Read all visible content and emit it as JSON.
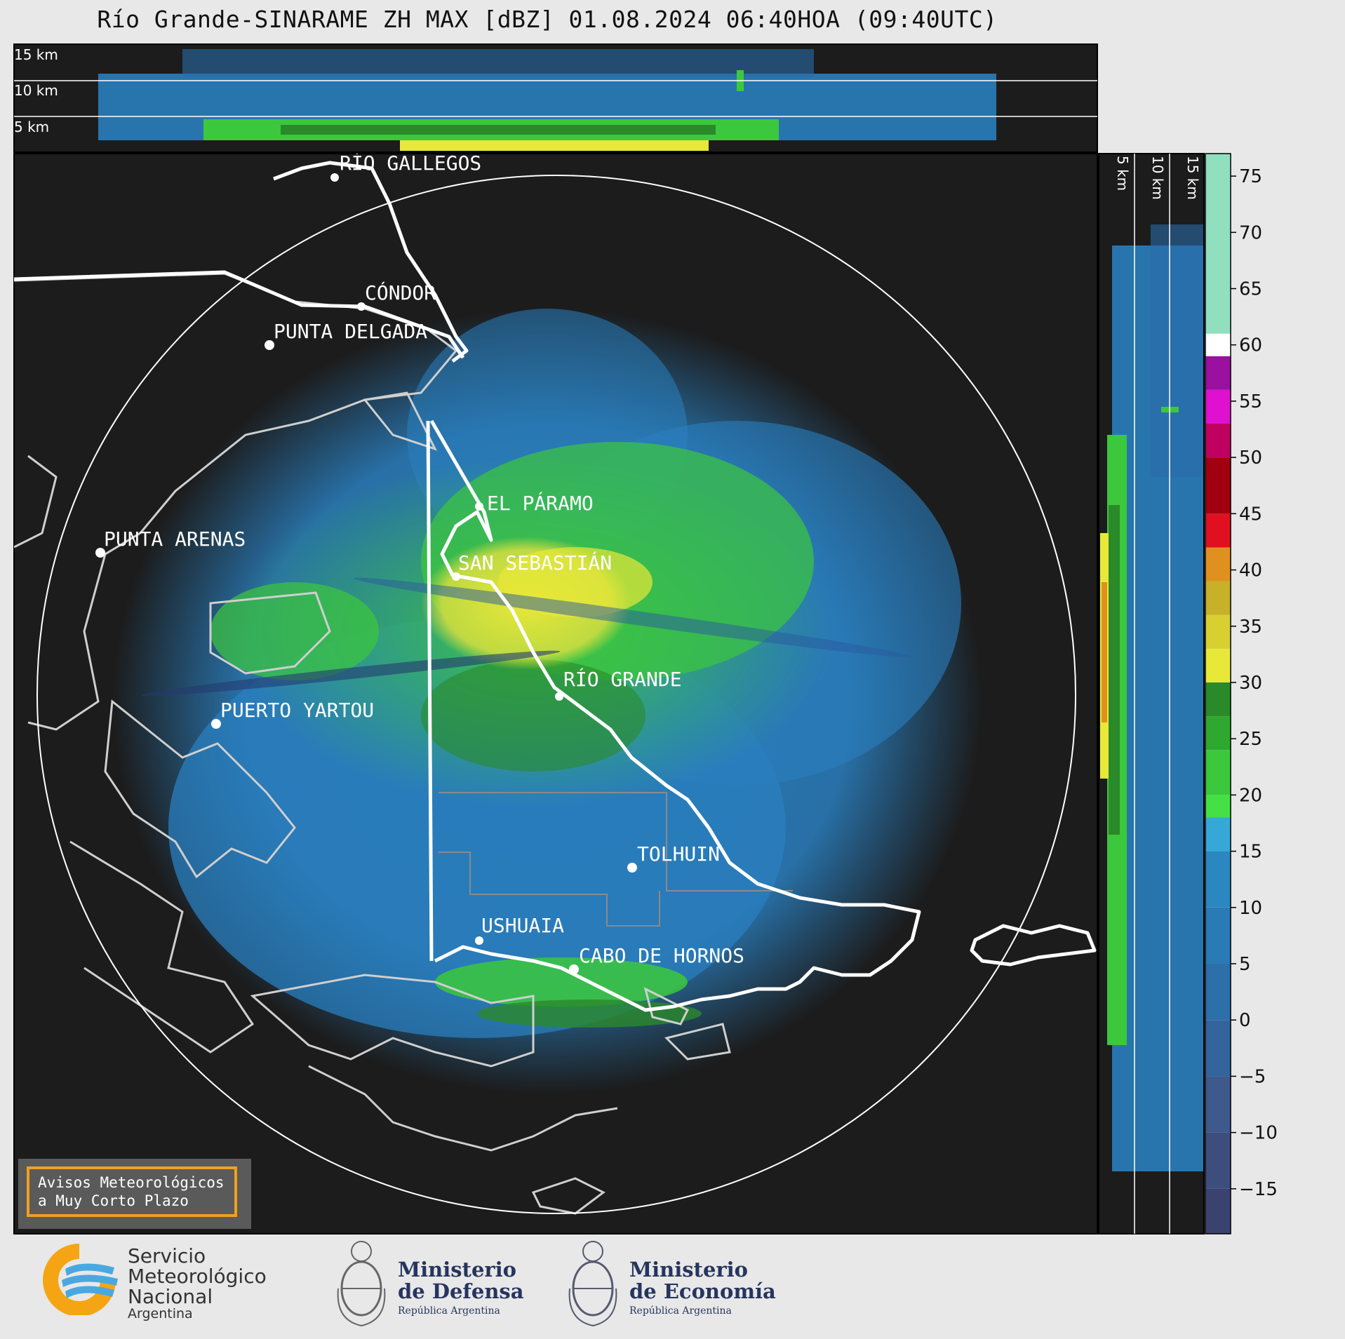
{
  "title": "Río Grande-SINARAME ZH MAX [dBZ] 01.08.2024 06:40HOA (09:40UTC)",
  "top_section": {
    "height_labels": [
      "15 km",
      "10 km",
      "5 km"
    ]
  },
  "side_section": {
    "height_labels": [
      "5 km",
      "10 km",
      "15 km"
    ]
  },
  "cities": [
    {
      "name": "RÍO GALLEGOS"
    },
    {
      "name": "CÓNDOR"
    },
    {
      "name": "PUNTA DELGADA"
    },
    {
      "name": "EL PÁRAMO"
    },
    {
      "name": "PUNTA ARENAS"
    },
    {
      "name": "SAN SEBASTIÁN"
    },
    {
      "name": "RÍO GRANDE"
    },
    {
      "name": "PUERTO YARTOU"
    },
    {
      "name": "TOLHUIN"
    },
    {
      "name": "USHUAIA"
    },
    {
      "name": "CABO DE HORNOS"
    }
  ],
  "colorbar": {
    "unit": "dBZ",
    "ticks": [
      "75",
      "70",
      "65",
      "60",
      "55",
      "50",
      "45",
      "40",
      "35",
      "30",
      "25",
      "20",
      "15",
      "10",
      "5",
      "0",
      "−5",
      "−10",
      "−15"
    ],
    "colors": {
      "low": "#3a4370",
      "blue": "#2a7fbf",
      "cyan": "#35a8d8",
      "green": "#3cc83c",
      "dark_green": "#2a8a2a",
      "yellow": "#e8e838",
      "orange": "#e0901e",
      "red": "#e01020",
      "dark_red": "#a00010",
      "magenta": "#e010d0",
      "purple": "#9a10a0",
      "white": "#ffffff",
      "mint": "#90e0c0"
    }
  },
  "notice": {
    "line1": "Avisos Meteorológicos",
    "line2": "a Muy Corto Plazo",
    "border_color": "#f0a020"
  },
  "logos": {
    "smn": {
      "line1": "Servicio",
      "line2": "Meteorológico",
      "line3": "Nacional",
      "line4": "Argentina"
    },
    "defensa": {
      "line1": "Ministerio",
      "line2": "de Defensa",
      "sub": "República Argentina"
    },
    "economia": {
      "line1": "Ministerio",
      "line2": "de Economía",
      "sub": "República Argentina"
    }
  }
}
